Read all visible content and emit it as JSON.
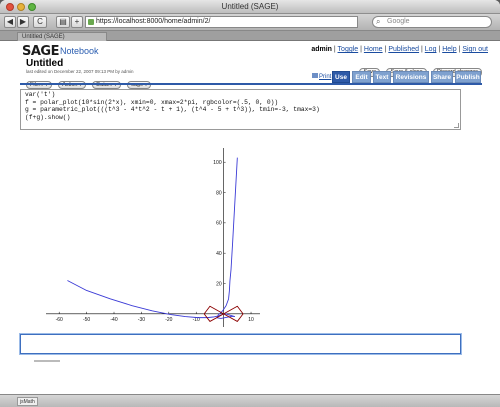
{
  "window": {
    "title": "Untitled (SAGE)"
  },
  "browser": {
    "url": "https://localhost:8000/home/admin/2/",
    "search_placeholder": "Google",
    "tab_label": "Untitled (SAGE)",
    "back_label": "◀",
    "forward_label": "▶",
    "reload_label": "C",
    "print_label": "▤",
    "add_label": "+",
    "status_text": "jsMath"
  },
  "header": {
    "logo": "SAGE",
    "notebook_label": "Notebook",
    "user": "admin",
    "nav": [
      "Toggle",
      "Home",
      "Published",
      "Log",
      "Help",
      "Sign out"
    ]
  },
  "worksheet": {
    "title": "Untitled",
    "subtitle": "last edited on December 22, 2007 09:13 PM by admin",
    "save_buttons": [
      "Save",
      "Save & close",
      "Discard changes"
    ],
    "menus": [
      "File...",
      "Action",
      "Data...",
      "sage"
    ],
    "print_label": "Print",
    "tabs": [
      {
        "label": "Use",
        "active": true
      },
      {
        "label": "Edit",
        "active": false
      },
      {
        "label": "Text",
        "active": false
      },
      {
        "label": "Revisions",
        "active": false
      },
      {
        "label": "Share",
        "active": false
      },
      {
        "label": "Publish",
        "active": false
      }
    ]
  },
  "cell": {
    "lines": [
      "var('t')",
      "f = polar_plot(10*sin(2*x), xmin=0, xmax=2*pi, rgbcolor=(.5, 0, 0))",
      "g = parametric_plot(((t^3 - 4*t^2 - t + 1), (t^4 - 5 + t^3)), tmin=-3, tmax=3)",
      "(f+g).show()"
    ]
  },
  "plot": {
    "colors": {
      "parametric": "#3b3bd6",
      "polar": "#8b0000",
      "axes": "#000000"
    }
  },
  "chart_data": {
    "type": "line",
    "x_ticks": [
      -60,
      -50,
      -40,
      -30,
      -20,
      -10,
      10
    ],
    "y_ticks": [
      20,
      40,
      60,
      80,
      100
    ],
    "xlim": [
      -67,
      14
    ],
    "ylim": [
      -10,
      112
    ],
    "series": [
      {
        "x": [
          -57.0,
          -50.0,
          -41.4,
          -33.4,
          -26.1,
          -19.6,
          -14.0,
          -9.4,
          -5.9,
          -3.4,
          -1.7,
          -0.7,
          -0.1,
          0.7,
          2.0,
          3.3,
          4.0,
          3.0,
          -1.0,
          -2.4,
          -2.0,
          -0.4,
          0.9,
          1.8,
          2.1,
          2.3,
          2.7,
          3.3,
          5.0
        ],
        "y": [
          22.0,
          15.4,
          9.9,
          5.4,
          2.0,
          -0.4,
          -1.8,
          -2.5,
          -2.5,
          -2.0,
          -1.3,
          -0.6,
          0.0,
          0.0,
          -0.7,
          -1.4,
          -1.8,
          -1.6,
          -3.0,
          -2.6,
          -0.8,
          1.9,
          5.4,
          9.8,
          15.2,
          21.7,
          29.3,
          47.5,
          103.0
        ]
      },
      {
        "x": [
          0,
          5,
          7.1,
          5,
          0,
          -5,
          -7.1,
          -5,
          0,
          5,
          7.1,
          5,
          0,
          -5,
          -7.1,
          -5,
          0
        ],
        "y": [
          0,
          5,
          0,
          -5,
          0,
          5,
          0,
          -5,
          0,
          -5,
          0,
          5,
          0,
          -5,
          0,
          5,
          0
        ]
      }
    ]
  }
}
